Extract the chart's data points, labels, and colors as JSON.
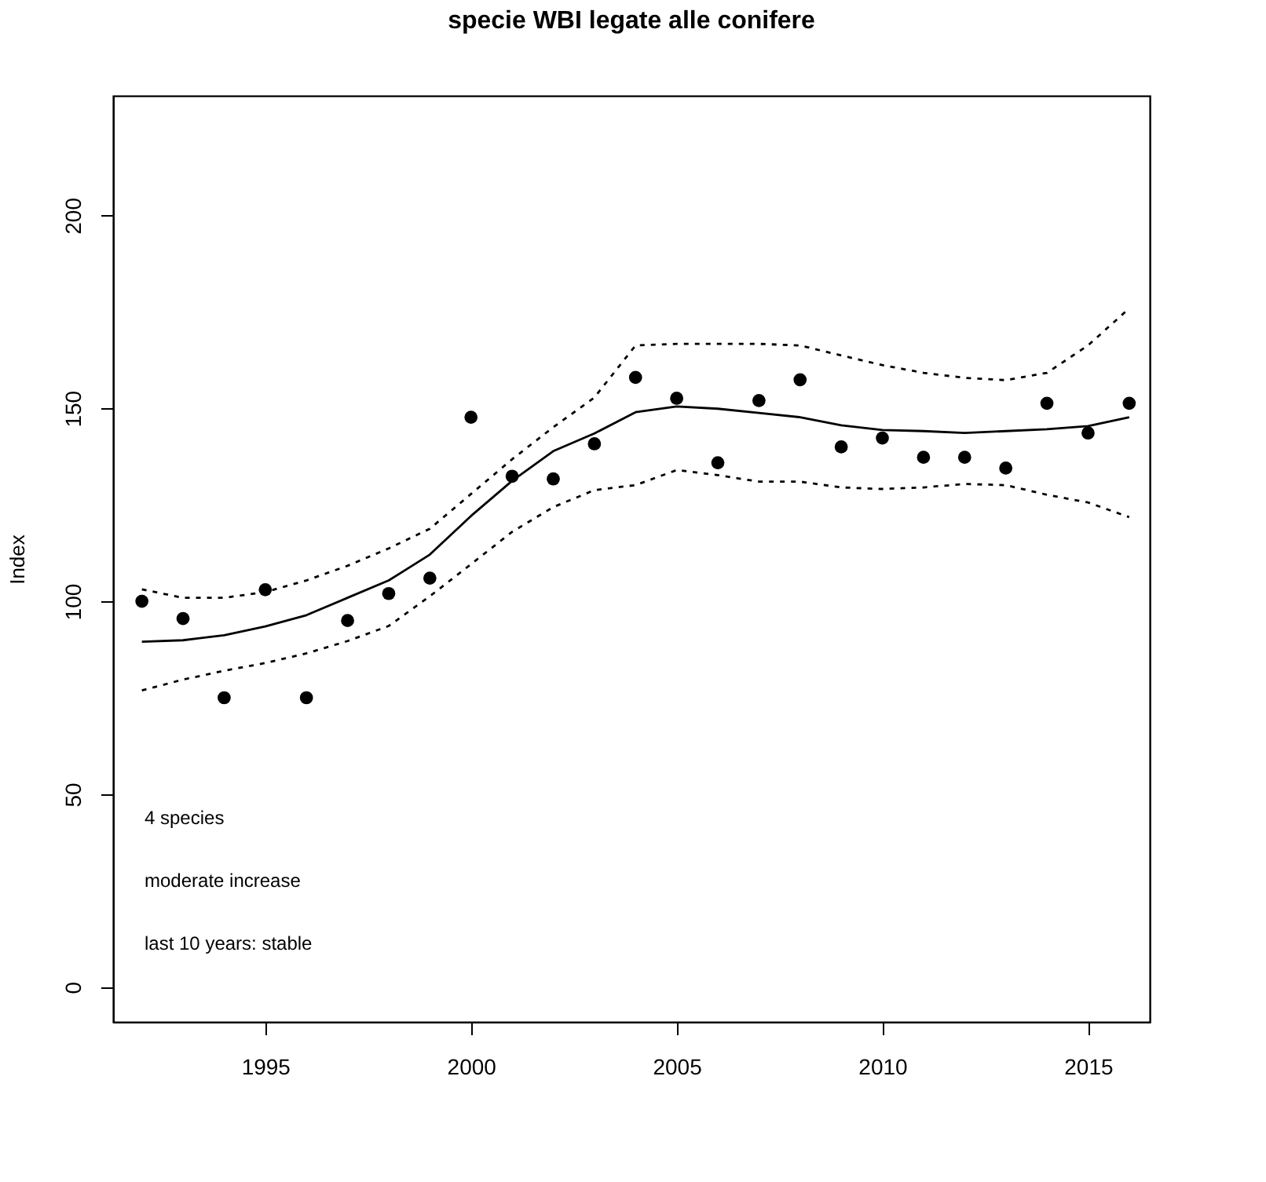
{
  "chart_data": {
    "type": "scatter",
    "title": "specie WBI legate alle conifere",
    "ylabel": "Index",
    "x": [
      1992,
      1993,
      1994,
      1995,
      1996,
      1997,
      1998,
      1999,
      2000,
      2001,
      2002,
      2003,
      2004,
      2005,
      2006,
      2007,
      2008,
      2009,
      2010,
      2011,
      2012,
      2013,
      2014,
      2015,
      2016
    ],
    "series": [
      {
        "color": "#000000",
        "marker": "circle",
        "values": [
          100,
          95.5,
          75,
          103,
          75,
          95,
          102,
          106,
          147.7,
          132.4,
          131.7,
          140.8,
          158,
          152.6,
          135.9,
          152,
          157.4,
          140,
          142.3,
          137.3,
          137.3,
          134.5,
          151.3,
          143.6,
          151.3
        ]
      },
      {
        "type": "line",
        "color": "#000000",
        "line_style": "solid",
        "values": [
          89.5,
          89.9,
          91.2,
          93.5,
          96.4,
          100.9,
          105.4,
          112.1,
          122.1,
          131.2,
          138.9,
          143.5,
          149,
          150.5,
          149.9,
          148.8,
          147.7,
          145.6,
          144.4,
          144.1,
          143.6,
          144.1,
          144.6,
          145.4,
          147.7
        ]
      },
      {
        "type": "line",
        "color": "#000000",
        "line_style": "dotted",
        "values": [
          103.1,
          100.9,
          100.9,
          102.4,
          105.4,
          109.2,
          113.7,
          118.8,
          127.8,
          136.8,
          145.1,
          152.8,
          166.3,
          166.7,
          166.7,
          166.7,
          166.3,
          163.7,
          161.2,
          159.2,
          157.9,
          157.3,
          159.2,
          166.3,
          175.9
        ]
      },
      {
        "type": "line",
        "color": "#000000",
        "line_style": "dotted",
        "values": [
          76.9,
          79.7,
          82,
          84,
          86.5,
          89.7,
          93.6,
          101.3,
          109.6,
          118,
          124.4,
          128.8,
          130.1,
          134,
          132.7,
          131,
          131,
          129.5,
          129.1,
          129.5,
          130.4,
          130.1,
          127.6,
          125.6,
          121.8
        ]
      }
    ],
    "xlim": [
      1991.3,
      2016.5
    ],
    "ylim": [
      -9,
      231
    ],
    "xticks": [
      1995,
      2000,
      2005,
      2010,
      2015
    ],
    "yticks": [
      0,
      50,
      100,
      150,
      200
    ],
    "grid": false,
    "annotations": [
      "4 species",
      "moderate increase",
      "last 10 years: stable"
    ]
  }
}
